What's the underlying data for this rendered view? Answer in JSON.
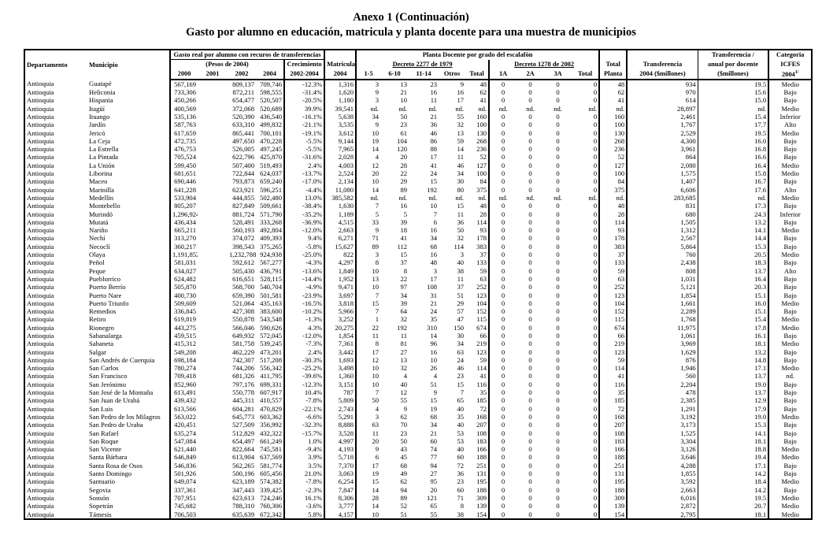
{
  "title": "Anexo 1 (Continuación)",
  "subtitle": "Gasto por alumno en educación, matricula y planta docente para una muestra de municipios",
  "headers": {
    "departamento": "Departamento",
    "municipio": "Municipio",
    "gasto_group": "Gasto real por alumno con recuros de transferencias",
    "pesos": "(Pesos de 2004)",
    "y2000": "2000",
    "y2001": "2001",
    "y2002": "2002",
    "y2004": "2004",
    "crecimiento": "Crecimiento",
    "crecimiento_period": "2002-2004",
    "matricula": "Matricula",
    "matricula_year": "2004",
    "planta_group": "Planta Docente por grado del escalafón",
    "decreto2277": "Decreto 2277 de 1979",
    "decreto1278": "Decreto 1278 de 2002",
    "g1_5": "1-5",
    "g6_10": "6-10",
    "g11_14": "11-14",
    "otros": "Otros",
    "total": "Total",
    "a1": "1A",
    "a2": "2A",
    "a3": "3A",
    "total_planta_1": "Total",
    "total_planta_2": "Planta",
    "transferencia_1": "Transferencia",
    "transferencia_2": "2004 ($millones)",
    "por_docente_1": "Transferencia /",
    "por_docente_2": "anual por docente",
    "por_docente_3": "($millones)",
    "categoria_1": "Categoria",
    "categoria_2": "ICFES",
    "categoria_3": "2004",
    "categoria_note": "1/"
  },
  "rows": [
    [
      "Antioquia",
      "Guatapé",
      "567,169",
      "",
      "809,137",
      "709,746",
      "-12.3%",
      "1,316",
      "3",
      "13",
      "23",
      "9",
      "48",
      "0",
      "0",
      "0",
      "0",
      "48",
      "934",
      "19.5",
      "Medio"
    ],
    [
      "Antioquia",
      "Heliconia",
      "733,306",
      "",
      "872,211",
      "598,555",
      "-31.4%",
      "1,620",
      "9",
      "21",
      "16",
      "16",
      "62",
      "0",
      "0",
      "0",
      "0",
      "62",
      "970",
      "15.6",
      "Bajo"
    ],
    [
      "Antioquia",
      "Hispania",
      "450,266",
      "",
      "654,477",
      "520,507",
      "-20.5%",
      "1,180",
      "3",
      "10",
      "11",
      "17",
      "41",
      "0",
      "0",
      "0",
      "0",
      "41",
      "614",
      "15.0",
      "Bajo"
    ],
    [
      "Antioquia",
      "Itagüí",
      "400,569",
      "",
      "372,068",
      "520,689",
      "39.9%",
      "39,541",
      "nd.",
      "nd.",
      "nd.",
      "nd.",
      "nd.",
      "nd.",
      "nd.",
      "nd.",
      "nd.",
      "nd.",
      "28,897",
      "nd.",
      "Medio"
    ],
    [
      "Antioquia",
      "Ituango",
      "535,136",
      "",
      "520,390",
      "436,540",
      "-16.1%",
      "5,638",
      "34",
      "50",
      "21",
      "55",
      "160",
      "0",
      "0",
      "0",
      "0",
      "160",
      "2,461",
      "15.4",
      "Inferior"
    ],
    [
      "Antioquia",
      "Jardín",
      "587,763",
      "",
      "633,310",
      "499,832",
      "-21.1%",
      "3,535",
      "9",
      "23",
      "36",
      "32",
      "100",
      "0",
      "0",
      "0",
      "0",
      "100",
      "1,767",
      "17.7",
      "Alto"
    ],
    [
      "Antioquia",
      "Jericó",
      "617,659",
      "",
      "865,441",
      "700,101",
      "-19.1%",
      "3,612",
      "10",
      "61",
      "46",
      "13",
      "130",
      "0",
      "0",
      "0",
      "0",
      "130",
      "2,529",
      "19.5",
      "Medio"
    ],
    [
      "Antioquia",
      "La Ceja",
      "472,735",
      "",
      "497,650",
      "470,228",
      "-5.5%",
      "9,144",
      "19",
      "104",
      "86",
      "59",
      "268",
      "0",
      "0",
      "0",
      "0",
      "268",
      "4,300",
      "16.0",
      "Bajo"
    ],
    [
      "Antioquia",
      "La Estrella",
      "476,753",
      "",
      "526,005",
      "497,245",
      "-5.5%",
      "7,965",
      "14",
      "120",
      "88",
      "14",
      "236",
      "0",
      "0",
      "0",
      "0",
      "236",
      "3,961",
      "16.8",
      "Bajo"
    ],
    [
      "Antioquia",
      "La Pintada",
      "705,524",
      "",
      "622,796",
      "425,870",
      "-31.6%",
      "2,028",
      "4",
      "20",
      "17",
      "11",
      "52",
      "0",
      "0",
      "0",
      "0",
      "52",
      "864",
      "16.6",
      "Bajo"
    ],
    [
      "Antioquia",
      "La Unión",
      "599,450",
      "",
      "507,400",
      "519,493",
      "2.4%",
      "4,003",
      "12",
      "28",
      "41",
      "46",
      "127",
      "0",
      "0",
      "0",
      "0",
      "127",
      "2,080",
      "16.4",
      "Medio"
    ],
    [
      "Antioquia",
      "Liborina",
      "681,651",
      "",
      "722,844",
      "624,037",
      "-13.7%",
      "2,524",
      "20",
      "22",
      "24",
      "34",
      "100",
      "0",
      "0",
      "0",
      "0",
      "100",
      "1,575",
      "15.8",
      "Medio"
    ],
    [
      "Antioquia",
      "Maceo",
      "690,446",
      "",
      "793,873",
      "659,240",
      "-17.0%",
      "2,134",
      "10",
      "29",
      "15",
      "30",
      "84",
      "0",
      "0",
      "0",
      "0",
      "84",
      "1,407",
      "16.7",
      "Bajo"
    ],
    [
      "Antioquia",
      "Marinilla",
      "641,228",
      "",
      "623,921",
      "596,251",
      "-4.4%",
      "11,080",
      "14",
      "89",
      "192",
      "80",
      "375",
      "0",
      "0",
      "0",
      "0",
      "375",
      "6,606",
      "17.6",
      "Alto"
    ],
    [
      "Antioquia",
      "Medellín",
      "533,904",
      "",
      "444,855",
      "502,480",
      "13.0%",
      "385,582",
      "nd.",
      "nd.",
      "nd.",
      "nd.",
      "nd.",
      "nd.",
      "nd.",
      "nd.",
      "nd.",
      "nd.",
      "283,685",
      "nd.",
      "Medio"
    ],
    [
      "Antioquia",
      "Montebello",
      "805,207",
      "",
      "827,849",
      "509,661",
      "-38.4%",
      "1,630",
      "7",
      "16",
      "10",
      "15",
      "48",
      "0",
      "0",
      "0",
      "0",
      "48",
      "831",
      "17.3",
      "Bajo"
    ],
    [
      "Antioquia",
      "Murindó",
      "1,296,924",
      "",
      "881,724",
      "571,790",
      "-35.2%",
      "1,189",
      "5",
      "5",
      "7",
      "11",
      "28",
      "0",
      "0",
      "0",
      "0",
      "28",
      "680",
      "24.3",
      "Inferior"
    ],
    [
      "Antioquia",
      "Mutatá",
      "436,434",
      "",
      "528,491",
      "333,268",
      "-36.9%",
      "4,515",
      "33",
      "39",
      "6",
      "36",
      "114",
      "0",
      "0",
      "0",
      "0",
      "114",
      "1,505",
      "13.2",
      "Bajo"
    ],
    [
      "Antioquia",
      "Nariño",
      "665,211",
      "",
      "560,193",
      "492,804",
      "-12.0%",
      "2,663",
      "9",
      "18",
      "16",
      "50",
      "93",
      "0",
      "0",
      "0",
      "0",
      "93",
      "1,312",
      "14.1",
      "Medio"
    ],
    [
      "Antioquia",
      "Nechí",
      "313,270",
      "",
      "374,072",
      "409,393",
      "9.4%",
      "6,271",
      "71",
      "41",
      "34",
      "32",
      "178",
      "0",
      "0",
      "0",
      "0",
      "178",
      "2,567",
      "14.4",
      "Bajo"
    ],
    [
      "Antioquia",
      "Necoclí",
      "360,217",
      "",
      "398,543",
      "375,265",
      "-5.8%",
      "15,627",
      "89",
      "112",
      "68",
      "114",
      "383",
      "0",
      "0",
      "0",
      "0",
      "383",
      "5,864",
      "15.3",
      "Bajo"
    ],
    [
      "Antioquia",
      "Olaya",
      "1,191,852",
      "",
      "1,232,788",
      "924,938",
      "-25.0%",
      "822",
      "3",
      "15",
      "16",
      "3",
      "37",
      "0",
      "0",
      "0",
      "0",
      "37",
      "760",
      "20.5",
      "Medio"
    ],
    [
      "Antioquia",
      "Peñol",
      "581,031",
      "",
      "592,612",
      "567,277",
      "-4.3%",
      "4,297",
      "8",
      "37",
      "48",
      "40",
      "133",
      "0",
      "0",
      "0",
      "0",
      "133",
      "2,438",
      "18.3",
      "Bajo"
    ],
    [
      "Antioquia",
      "Peque",
      "634,027",
      "",
      "505,430",
      "436,791",
      "-13.6%",
      "1,849",
      "10",
      "8",
      "3",
      "38",
      "59",
      "0",
      "0",
      "0",
      "0",
      "59",
      "808",
      "13.7",
      "Alto"
    ],
    [
      "Antioquia",
      "Pueblorrico",
      "624,482",
      "",
      "616,651",
      "528,115",
      "-14.4%",
      "1,952",
      "13",
      "22",
      "17",
      "11",
      "63",
      "0",
      "0",
      "0",
      "0",
      "63",
      "1,031",
      "16.4",
      "Bajo"
    ],
    [
      "Antioquia",
      "Puerto Berrío",
      "505,870",
      "",
      "568,700",
      "540,704",
      "-4.9%",
      "9,471",
      "10",
      "97",
      "108",
      "37",
      "252",
      "0",
      "0",
      "0",
      "0",
      "252",
      "5,121",
      "20.3",
      "Bajo"
    ],
    [
      "Antioquia",
      "Puerto Nare",
      "400,730",
      "",
      "659,390",
      "501,581",
      "-23.9%",
      "3,697",
      "7",
      "34",
      "31",
      "51",
      "123",
      "0",
      "0",
      "0",
      "0",
      "123",
      "1,854",
      "15.1",
      "Bajo"
    ],
    [
      "Antioquia",
      "Puerto Triunfo",
      "509,609",
      "",
      "521,064",
      "435,163",
      "-16.5%",
      "3,818",
      "15",
      "39",
      "21",
      "29",
      "104",
      "0",
      "0",
      "0",
      "0",
      "104",
      "1,661",
      "16.0",
      "Medio"
    ],
    [
      "Antioquia",
      "Remedios",
      "336,845",
      "",
      "427,308",
      "383,600",
      "-10.2%",
      "5,966",
      "7",
      "64",
      "24",
      "57",
      "152",
      "0",
      "0",
      "0",
      "0",
      "152",
      "2,289",
      "15.1",
      "Bajo"
    ],
    [
      "Antioquia",
      "Retiro",
      "619,819",
      "",
      "550,878",
      "543,548",
      "-1.3%",
      "3,252",
      "1",
      "32",
      "35",
      "47",
      "115",
      "0",
      "0",
      "0",
      "0",
      "115",
      "1,768",
      "15.4",
      "Medio"
    ],
    [
      "Antioquia",
      "Rionegro",
      "443,275",
      "",
      "566,046",
      "590,626",
      "4.3%",
      "20,275",
      "22",
      "192",
      "310",
      "150",
      "674",
      "0",
      "0",
      "0",
      "0",
      "674",
      "11,975",
      "17.8",
      "Medio"
    ],
    [
      "Antioquia",
      "Sabanalarga",
      "459,515",
      "",
      "649,932",
      "572,045",
      "-12.0%",
      "1,854",
      "11",
      "11",
      "14",
      "30",
      "66",
      "0",
      "0",
      "0",
      "0",
      "66",
      "1,061",
      "16.1",
      "Bajo"
    ],
    [
      "Antioquia",
      "Sabaneta",
      "415,312",
      "",
      "581,758",
      "539,245",
      "-7.3%",
      "7,361",
      "8",
      "81",
      "96",
      "34",
      "219",
      "0",
      "0",
      "0",
      "0",
      "219",
      "3,969",
      "18.1",
      "Medio"
    ],
    [
      "Antioquia",
      "Salgar",
      "549,208",
      "",
      "462,229",
      "473,201",
      "2.4%",
      "3,442",
      "17",
      "27",
      "16",
      "63",
      "123",
      "0",
      "0",
      "0",
      "0",
      "123",
      "1,629",
      "13.2",
      "Bajo"
    ],
    [
      "Antioquia",
      "San Andrés de Cuerquia",
      "698,184",
      "",
      "742,307",
      "517,208",
      "-30.3%",
      "1,693",
      "12",
      "13",
      "10",
      "24",
      "59",
      "0",
      "0",
      "0",
      "0",
      "59",
      "876",
      "14.8",
      "Bajo"
    ],
    [
      "Antioquia",
      "San Carlos",
      "780,274",
      "",
      "744,206",
      "556,342",
      "-25.2%",
      "3,498",
      "10",
      "32",
      "26",
      "46",
      "114",
      "0",
      "0",
      "0",
      "0",
      "114",
      "1,946",
      "17.1",
      "Medio"
    ],
    [
      "Antioquia",
      "San Francisco",
      "709,418",
      "",
      "681,326",
      "411,795",
      "-39.6%",
      "1,360",
      "10",
      "4",
      "4",
      "23",
      "41",
      "0",
      "0",
      "0",
      "0",
      "41",
      "560",
      "13.7",
      "nd."
    ],
    [
      "Antioquia",
      "San Jerónimo",
      "852,960",
      "",
      "797,176",
      "699,331",
      "-12.3%",
      "3,151",
      "10",
      "40",
      "51",
      "15",
      "116",
      "0",
      "0",
      "0",
      "0",
      "116",
      "2,204",
      "19.0",
      "Bajo"
    ],
    [
      "Antioquia",
      "San José de la Montaña",
      "613,491",
      "",
      "550,778",
      "607,917",
      "10.4%",
      "787",
      "7",
      "12",
      "9",
      "7",
      "35",
      "0",
      "0",
      "0",
      "0",
      "35",
      "478",
      "13.7",
      "Bajo"
    ],
    [
      "Antioquia",
      "San Juan de Urabá",
      "439,432",
      "",
      "445,311",
      "410,557",
      "-7.8%",
      "5,809",
      "50",
      "55",
      "15",
      "65",
      "185",
      "0",
      "0",
      "0",
      "0",
      "185",
      "2,385",
      "12.9",
      "Bajo"
    ],
    [
      "Antioquia",
      "San Luis",
      "613,566",
      "",
      "604,281",
      "470,829",
      "-22.1%",
      "2,743",
      "4",
      "9",
      "19",
      "40",
      "72",
      "0",
      "0",
      "0",
      "0",
      "72",
      "1,291",
      "17.9",
      "Bajo"
    ],
    [
      "Antioquia",
      "San Pedro de los Milagros",
      "563,022",
      "",
      "645,773",
      "603,362",
      "-6.6%",
      "5,291",
      "3",
      "62",
      "68",
      "35",
      "168",
      "0",
      "0",
      "0",
      "0",
      "168",
      "3,192",
      "19.0",
      "Medio"
    ],
    [
      "Antioquia",
      "San Pedro de Uraba",
      "420,451",
      "",
      "527,509",
      "356,992",
      "-32.3%",
      "8,888",
      "63",
      "70",
      "34",
      "40",
      "207",
      "0",
      "0",
      "0",
      "0",
      "207",
      "3,173",
      "15.3",
      "Bajo"
    ],
    [
      "Antioquia",
      "San Rafael",
      "635,274",
      "",
      "512,829",
      "432,322",
      "-15.7%",
      "3,528",
      "11",
      "23",
      "21",
      "53",
      "108",
      "0",
      "0",
      "0",
      "0",
      "108",
      "1,525",
      "14.1",
      "Bajo"
    ],
    [
      "Antioquia",
      "San Roque",
      "547,084",
      "",
      "654,497",
      "661,249",
      "1.0%",
      "4,997",
      "20",
      "50",
      "60",
      "53",
      "183",
      "0",
      "0",
      "0",
      "0",
      "183",
      "3,304",
      "18.1",
      "Bajo"
    ],
    [
      "Antioquia",
      "San Vicente",
      "621,440",
      "",
      "822,664",
      "745,581",
      "-9.4%",
      "4,193",
      "9",
      "43",
      "74",
      "40",
      "166",
      "0",
      "0",
      "0",
      "0",
      "166",
      "3,126",
      "18.8",
      "Medio"
    ],
    [
      "Antioquia",
      "Santa Bárbara",
      "646,849",
      "",
      "613,904",
      "637,569",
      "3.9%",
      "5,718",
      "6",
      "45",
      "77",
      "60",
      "188",
      "0",
      "0",
      "0",
      "0",
      "188",
      "3,646",
      "19.4",
      "Medio"
    ],
    [
      "Antioquia",
      "Santa Rosa de Osos",
      "546,836",
      "",
      "562,265",
      "581,774",
      "3.5%",
      "7,370",
      "17",
      "68",
      "94",
      "72",
      "251",
      "0",
      "0",
      "0",
      "0",
      "251",
      "4,288",
      "17.1",
      "Bajo"
    ],
    [
      "Antioquia",
      "Santo Domingo",
      "501,926",
      "",
      "500,196",
      "605,456",
      "21.0%",
      "3,063",
      "19",
      "49",
      "27",
      "36",
      "131",
      "0",
      "0",
      "0",
      "0",
      "131",
      "1,855",
      "14.2",
      "Bajo"
    ],
    [
      "Antioquia",
      "Santuario",
      "649,074",
      "",
      "623,189",
      "574,382",
      "-7.8%",
      "6,254",
      "15",
      "62",
      "95",
      "23",
      "195",
      "0",
      "0",
      "0",
      "0",
      "195",
      "3,592",
      "18.4",
      "Medio"
    ],
    [
      "Antioquia",
      "Segovia",
      "337,361",
      "",
      "347,443",
      "339,425",
      "-2.3%",
      "7,847",
      "14",
      "94",
      "20",
      "60",
      "188",
      "0",
      "0",
      "0",
      "0",
      "188",
      "2,663",
      "14.2",
      "Bajo"
    ],
    [
      "Antioquia",
      "Sonsón",
      "707,951",
      "",
      "623,613",
      "724,246",
      "16.1%",
      "8,306",
      "28",
      "89",
      "121",
      "71",
      "309",
      "0",
      "0",
      "0",
      "0",
      "309",
      "6,016",
      "19.5",
      "Medio"
    ],
    [
      "Antioquia",
      "Sopetrán",
      "745,682",
      "",
      "788,310",
      "760,306",
      "-3.6%",
      "3,777",
      "14",
      "52",
      "65",
      "8",
      "139",
      "0",
      "0",
      "0",
      "0",
      "139",
      "2,872",
      "20.7",
      "Medio"
    ],
    [
      "Antioquia",
      "Támesis",
      "706,503",
      "",
      "635,639",
      "672,342",
      "5.8%",
      "4,157",
      "10",
      "51",
      "55",
      "38",
      "154",
      "0",
      "0",
      "0",
      "0",
      "154",
      "2,795",
      "18.1",
      "Medio"
    ]
  ]
}
